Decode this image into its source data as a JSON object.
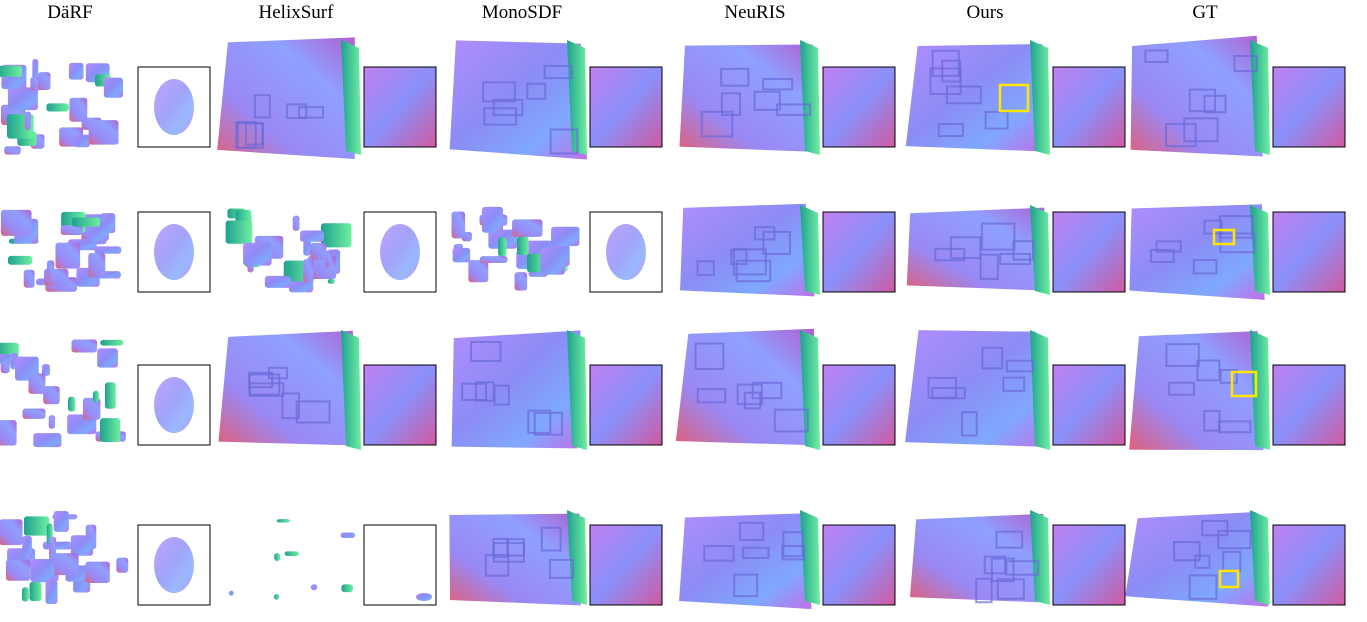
{
  "columns": [
    "DäRF",
    "HelixSurf",
    "MonoSDF",
    "NeuRIS",
    "Ours",
    "GT"
  ]
}
